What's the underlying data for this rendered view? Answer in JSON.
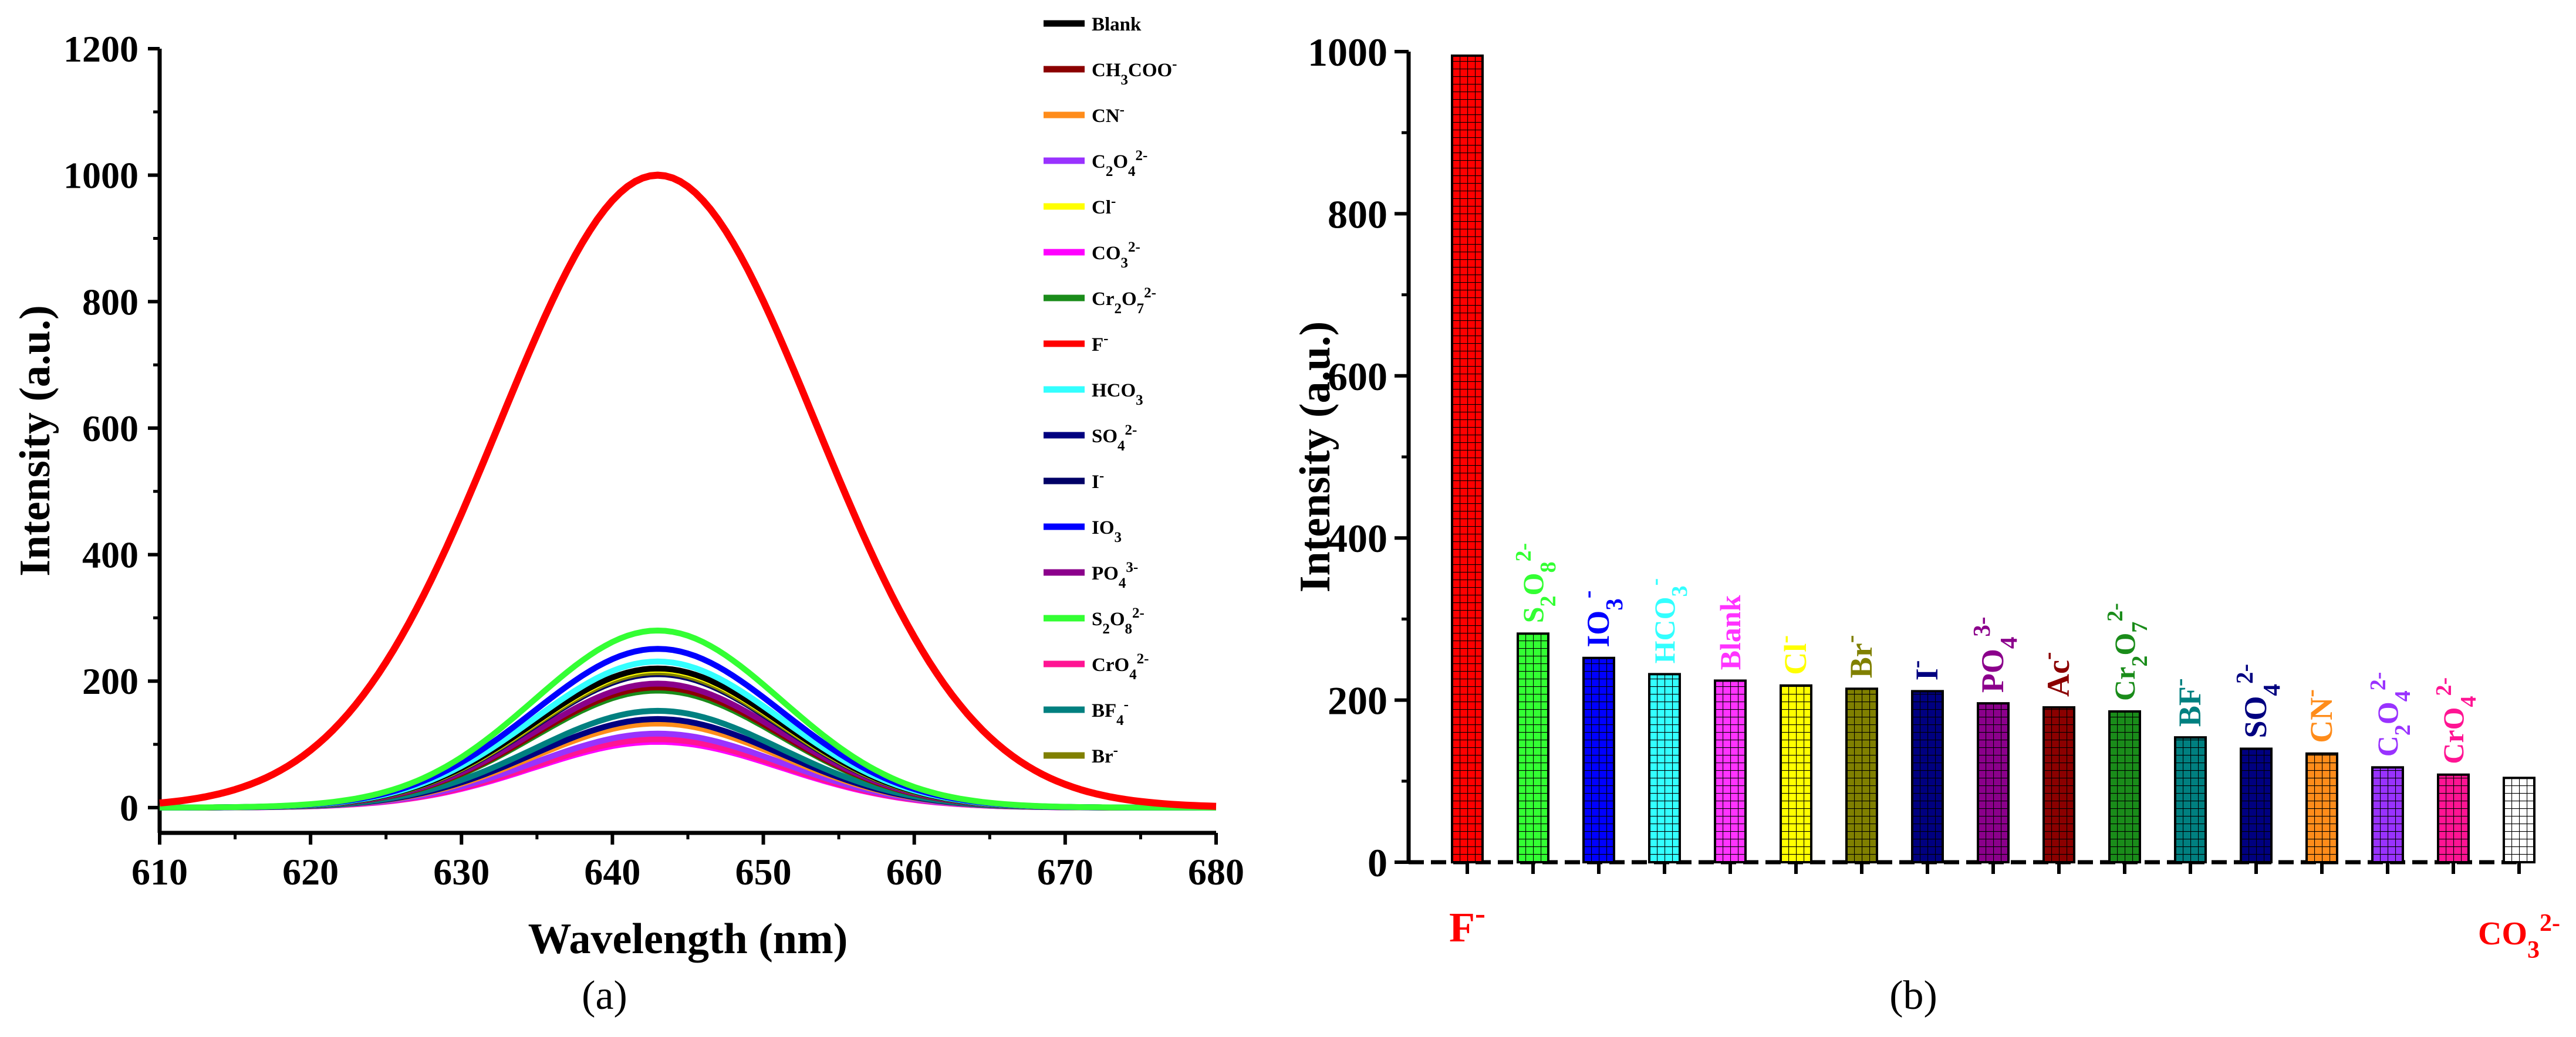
{
  "chart_data": [
    {
      "type": "line",
      "panel_label": "(a)",
      "xlabel": "Wavelength (nm)",
      "ylabel": "Intensity (a.u.)",
      "xlim": [
        610,
        680
      ],
      "ylim": [
        -40,
        1200
      ],
      "x_ticks": [
        610,
        620,
        630,
        640,
        650,
        660,
        670,
        680
      ],
      "y_ticks": [
        0,
        200,
        400,
        600,
        800,
        1000,
        1200
      ],
      "peak_wavelength": 643,
      "series": [
        {
          "name": "Blank",
          "color": "#000000",
          "peak": 220
        },
        {
          "name": "CH3COO",
          "sup": "-",
          "color": "#8b0000",
          "peak": 190
        },
        {
          "name": "CN",
          "sup": "-",
          "color": "#ff8c1a",
          "peak": 133
        },
        {
          "name": "C2O4",
          "sup": "2-",
          "color": "#9932ff",
          "peak": 117
        },
        {
          "name": "Cl",
          "sup": "-",
          "color": "#ffff00",
          "peak": 218
        },
        {
          "name": "CO3",
          "sup": "2-",
          "color": "#ff00ff",
          "peak": 104
        },
        {
          "name": "Cr2O7",
          "sup": "2-",
          "color": "#1a8c1a",
          "peak": 185
        },
        {
          "name": "F",
          "sup": "-",
          "color": "#ff0000",
          "peak": 1000
        },
        {
          "name": "HCO3",
          "sup": "",
          "color": "#33ffff",
          "peak": 231
        },
        {
          "name": "SO4",
          "sup": "2-",
          "color": "#000080",
          "peak": 140
        },
        {
          "name": "I",
          "sup": "-",
          "color": "#000066",
          "peak": 211
        },
        {
          "name": "IO3",
          "sup": "",
          "color": "#0000ff",
          "peak": 251
        },
        {
          "name": "PO4",
          "sup": "3-",
          "color": "#8b008b",
          "peak": 196
        },
        {
          "name": "S2O8",
          "sup": "2-",
          "color": "#33ff33",
          "peak": 280
        },
        {
          "name": "CrO4",
          "sup": "2-",
          "color": "#ff1493",
          "peak": 108
        },
        {
          "name": "BF4",
          "sup": "-",
          "color": "#008080",
          "peak": 153
        },
        {
          "name": "Br",
          "sup": "-",
          "color": "#808000",
          "peak": 214
        }
      ]
    },
    {
      "type": "bar",
      "panel_label": "(b)",
      "ylabel": "Intensity (a.u.)",
      "ylim": [
        0,
        1000
      ],
      "y_ticks": [
        0,
        200,
        400,
        600,
        800,
        1000
      ],
      "categories": [
        {
          "name": "F",
          "sup": "-",
          "color": "#ff0000",
          "value": 995
        },
        {
          "name": "S2O8",
          "sup": "2-",
          "color": "#33ff33",
          "value": 282
        },
        {
          "name": "IO3",
          "sup": "-",
          "color": "#0000ff",
          "value": 252
        },
        {
          "name": "HCO3",
          "sup": "-",
          "color": "#33ffff",
          "value": 232
        },
        {
          "name": "Blank",
          "sup": "",
          "color": "#ff33ff",
          "value": 224
        },
        {
          "name": "Cl",
          "sup": "-",
          "color": "#ffff00",
          "value": 218
        },
        {
          "name": "Br",
          "sup": "-",
          "color": "#808000",
          "value": 214
        },
        {
          "name": "I",
          "sup": "-",
          "color": "#000080",
          "value": 211
        },
        {
          "name": "PO4",
          "sup": "3-",
          "color": "#8b008b",
          "value": 196
        },
        {
          "name": "Ac",
          "sup": "-",
          "color": "#8b0000",
          "value": 191
        },
        {
          "name": "Cr2O7",
          "sup": "2-",
          "color": "#1a8c1a",
          "value": 186
        },
        {
          "name": "BF",
          "sup": "-",
          "color": "#008080",
          "value": 154
        },
        {
          "name": "SO4",
          "sup": "2-",
          "color": "#000080",
          "value": 140
        },
        {
          "name": "CN",
          "sup": "-",
          "color": "#ff8c1a",
          "value": 134
        },
        {
          "name": "C2O4",
          "sup": "2-",
          "color": "#9932ff",
          "value": 117
        },
        {
          "name": "CrO4",
          "sup": "2-",
          "color": "#ff1493",
          "value": 108
        },
        {
          "name": "CO3",
          "sup": "2-",
          "color": "#ffffff",
          "value": 104
        }
      ]
    }
  ]
}
